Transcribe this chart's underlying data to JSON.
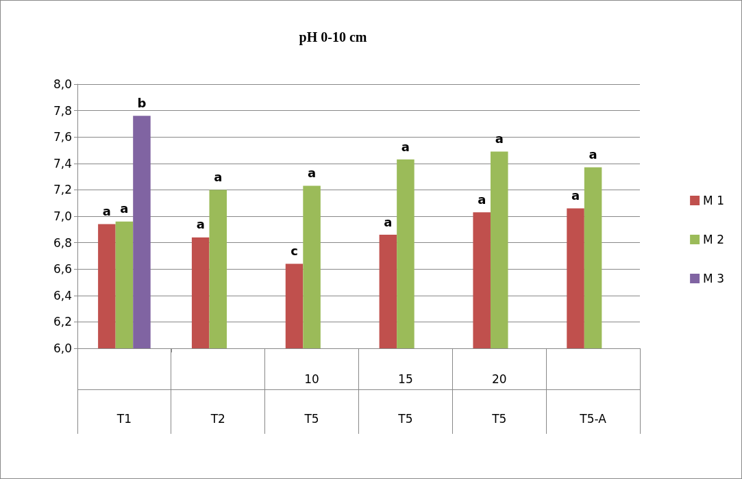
{
  "chart_data": {
    "type": "bar",
    "title": "pH 0-10 cm",
    "categories": [
      "T1",
      "T2",
      "10\nT5",
      "15\nT5",
      "20\nT5",
      "T5-A"
    ],
    "series": [
      {
        "name": "M 1",
        "color": "#c0504d",
        "values": [
          6.94,
          6.84,
          6.64,
          6.86,
          7.03,
          7.06
        ],
        "value_labels": [
          "a",
          "a",
          "c",
          "a",
          "a",
          "a"
        ]
      },
      {
        "name": "M 2",
        "color": "#9bbb59",
        "values": [
          6.96,
          7.2,
          7.23,
          7.43,
          7.49,
          7.37
        ],
        "value_labels": [
          "a",
          "a",
          "a",
          "a",
          "a",
          "a"
        ]
      },
      {
        "name": "M 3",
        "color": "#8064a2",
        "values": [
          7.76,
          null,
          null,
          null,
          null,
          null
        ],
        "value_labels": [
          "b",
          null,
          null,
          null,
          null,
          null
        ]
      }
    ],
    "ylim": [
      6.0,
      8.0
    ],
    "yticks": [
      {
        "value": 6.0,
        "label": "6,0"
      },
      {
        "value": 6.2,
        "label": "6,2"
      },
      {
        "value": 6.4,
        "label": "6,4"
      },
      {
        "value": 6.6,
        "label": "6,6"
      },
      {
        "value": 6.8,
        "label": "6,8"
      },
      {
        "value": 7.0,
        "label": "7,0"
      },
      {
        "value": 7.2,
        "label": "7,2"
      },
      {
        "value": 7.4,
        "label": "7,4"
      },
      {
        "value": 7.6,
        "label": "7,6"
      },
      {
        "value": 7.8,
        "label": "7,8"
      },
      {
        "value": 8.0,
        "label": "8,0"
      }
    ],
    "grid": "y",
    "legend": "right"
  }
}
